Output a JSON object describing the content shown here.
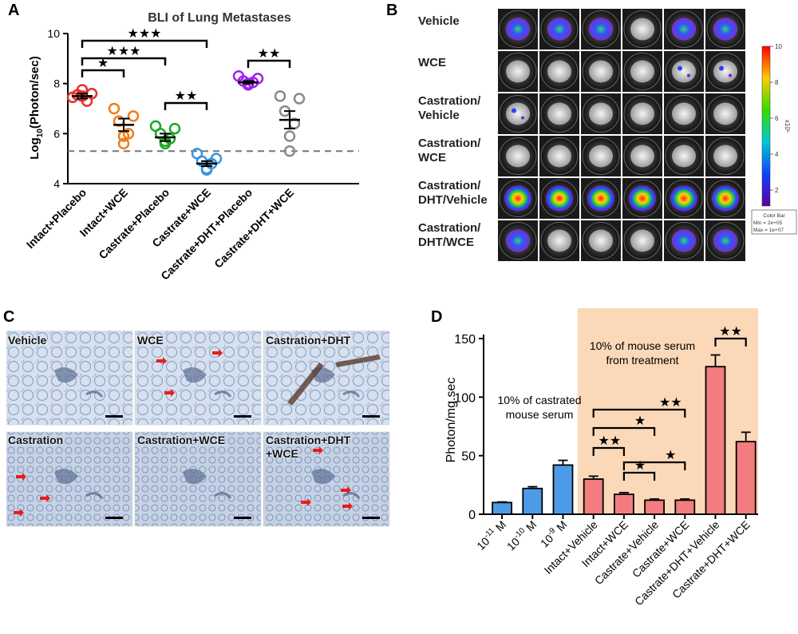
{
  "panel_letters": [
    "A",
    "B",
    "C",
    "D"
  ],
  "panelA": {
    "title": "BLI of Lung Metastases",
    "ylabel_main": "Log",
    "ylabel_sub": "10",
    "ylabel_rest": "(Photon/sec)",
    "significance": [
      "★",
      "★★★",
      "★★★",
      "★★",
      "★★"
    ]
  },
  "panelB": {
    "row_labels": [
      [
        "Vehicle"
      ],
      [
        "WCE"
      ],
      [
        "Castration/",
        "Vehicle"
      ],
      [
        "Castration/",
        "WCE"
      ],
      [
        "Castration/",
        "DHT/Vehicle"
      ],
      [
        "Castration/",
        "DHT/WCE"
      ]
    ],
    "colorbar_ticks": [
      "10",
      "8",
      "6",
      "4",
      "2"
    ],
    "colorbar_unit": "x10⁶",
    "colorbar_box": [
      "Color Bar",
      "Min = 2e+05",
      "Max = 1e+07"
    ]
  },
  "panelC": {
    "labels": [
      "Vehicle",
      "WCE",
      "Castration+DHT",
      "Castration",
      "Castration+WCE",
      "Castration+DHT",
      "+WCE"
    ]
  },
  "panelD": {
    "annotation_left": [
      "10% of castrated",
      "mouse serum"
    ],
    "annotation_right": [
      "10% of mouse serum",
      "from treatment"
    ],
    "significance": [
      "★★",
      "★★",
      "★",
      "★★",
      "★",
      "★"
    ]
  },
  "colors": {
    "intact_placebo": "#e8302c",
    "intact_wce": "#f07d1a",
    "castrate_placebo": "#1fa52a",
    "castrate_wce": "#3a93e0",
    "castrate_dht_placebo": "#a020f0",
    "castrate_dht_wce": "#8a8a8a",
    "bar_blue": "#4d9be8",
    "bar_red": "#f27c80",
    "shade": "#fbd9b8",
    "histo_bg": "#c9d5e6",
    "arrow": "#e81c1c"
  },
  "chart_data": [
    {
      "type": "scatter",
      "title": "BLI of Lung Metastases",
      "ylabel": "Log10(Photon/sec)",
      "ylim": [
        4,
        10
      ],
      "yticks": [
        4,
        6,
        8,
        10
      ],
      "categories": [
        "Intact+Placebo",
        "Intact+WCE",
        "Castrate+Placebo",
        "Castrate+WCE",
        "Castrate+DHT+Placebo",
        "Castrate+DHT+WCE"
      ],
      "series": [
        {
          "values": [
            7.45,
            7.6,
            7.55,
            7.3,
            7.75,
            7.5
          ],
          "mean": 7.5,
          "sem": 0.1
        },
        {
          "values": [
            7.0,
            6.7,
            6.5,
            6.0,
            5.9,
            5.6
          ],
          "mean": 6.35,
          "sem": 0.25
        },
        {
          "values": [
            6.3,
            6.2,
            6.0,
            5.8,
            5.7,
            5.6
          ],
          "mean": 5.85,
          "sem": 0.15
        },
        {
          "values": [
            5.2,
            5.0,
            4.9,
            4.8,
            4.6,
            4.55
          ],
          "mean": 4.8,
          "sem": 0.1
        },
        {
          "values": [
            8.3,
            8.2,
            8.1,
            8.05,
            7.95,
            8.0
          ],
          "mean": 8.05,
          "sem": 0.05
        },
        {
          "values": [
            7.5,
            7.4,
            6.9,
            6.4,
            5.9,
            5.3
          ],
          "mean": 6.55,
          "sem": 0.35
        }
      ],
      "baseline": 5.3
    },
    {
      "type": "bar",
      "ylabel": "Photon/mg.sec",
      "ylim": [
        0,
        150
      ],
      "yticks": [
        0,
        50,
        100,
        150
      ],
      "categories": [
        "10-11 M",
        "10-10 M",
        "10-9 M",
        "Intact+Vehicle",
        "Intact+WCE",
        "Castrate+Vehicle",
        "Castrate+WCE",
        "Castrate+DHT+Vehicle",
        "Castrate+DHT+WCE"
      ],
      "category_labels": [
        [
          "10",
          "-11",
          " M"
        ],
        [
          "10",
          "-10",
          " M"
        ],
        [
          "10",
          "-9",
          " M"
        ],
        [
          "Intact+Vehicle"
        ],
        [
          "Intact+WCE"
        ],
        [
          "Castrate+Vehicle"
        ],
        [
          "Castrate+WCE"
        ],
        [
          "Castrate+DHT+Vehicle"
        ],
        [
          "Castrate+DHT+WCE"
        ]
      ],
      "values": [
        10,
        22,
        42,
        30,
        17,
        12,
        12,
        126,
        62
      ],
      "errors": [
        0.5,
        1.5,
        4,
        2.5,
        1.5,
        1,
        1,
        10,
        8
      ]
    }
  ]
}
